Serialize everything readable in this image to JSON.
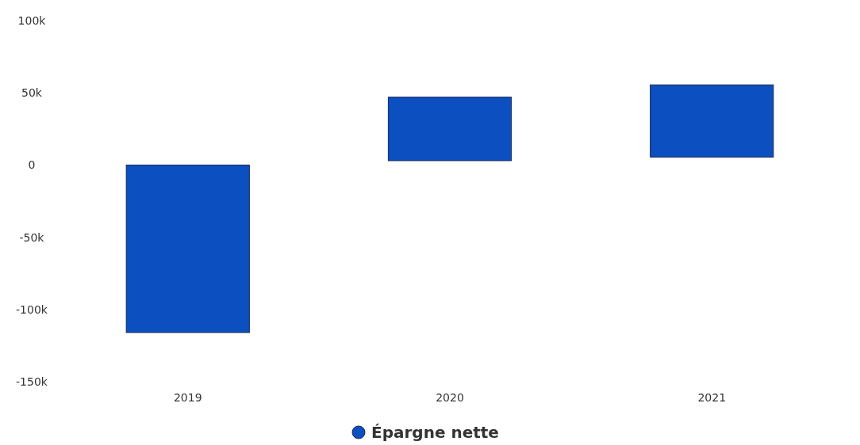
{
  "chart_data": {
    "type": "bar",
    "categories": [
      "2019",
      "2020",
      "2021"
    ],
    "series": [
      {
        "name": "Épargne nette",
        "color": "#0b4fc0",
        "values": [
          -116000,
          44000,
          50000
        ],
        "base": [
          0,
          3000,
          5500
        ]
      }
    ],
    "ylim": [
      -150000,
      100000
    ],
    "yticks": [
      {
        "value": -150000,
        "label": "-150k"
      },
      {
        "value": -100000,
        "label": "-100k"
      },
      {
        "value": -50000,
        "label": "-50k"
      },
      {
        "value": 0,
        "label": "0"
      },
      {
        "value": 50000,
        "label": "50k"
      },
      {
        "value": 100000,
        "label": "100k"
      }
    ],
    "legend": "bottom",
    "grid": false
  }
}
